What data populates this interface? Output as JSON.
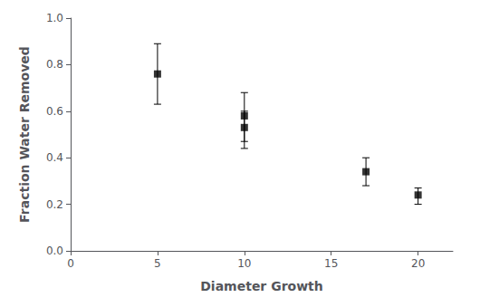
{
  "chart_data": {
    "type": "scatter",
    "xlabel": "Diameter Growth",
    "ylabel": "Fraction Water Removed",
    "x": [
      5,
      10,
      10,
      17,
      20
    ],
    "y": [
      0.76,
      0.58,
      0.53,
      0.34,
      0.24
    ],
    "yerr_upper": [
      0.13,
      0.1,
      0.07,
      0.06,
      0.03
    ],
    "yerr_lower": [
      0.13,
      0.11,
      0.09,
      0.06,
      0.04
    ],
    "xlim": [
      0,
      22
    ],
    "ylim": [
      0.0,
      1.0
    ],
    "xticks": [
      0,
      5,
      10,
      15,
      20
    ],
    "yticks": [
      {
        "value": 0.0,
        "label": "0.0"
      },
      0.2,
      0.4,
      0.6,
      0.8,
      {
        "value": 1.0,
        "label": "1.0"
      }
    ],
    "marker": "square",
    "color": "black",
    "grid": false
  }
}
